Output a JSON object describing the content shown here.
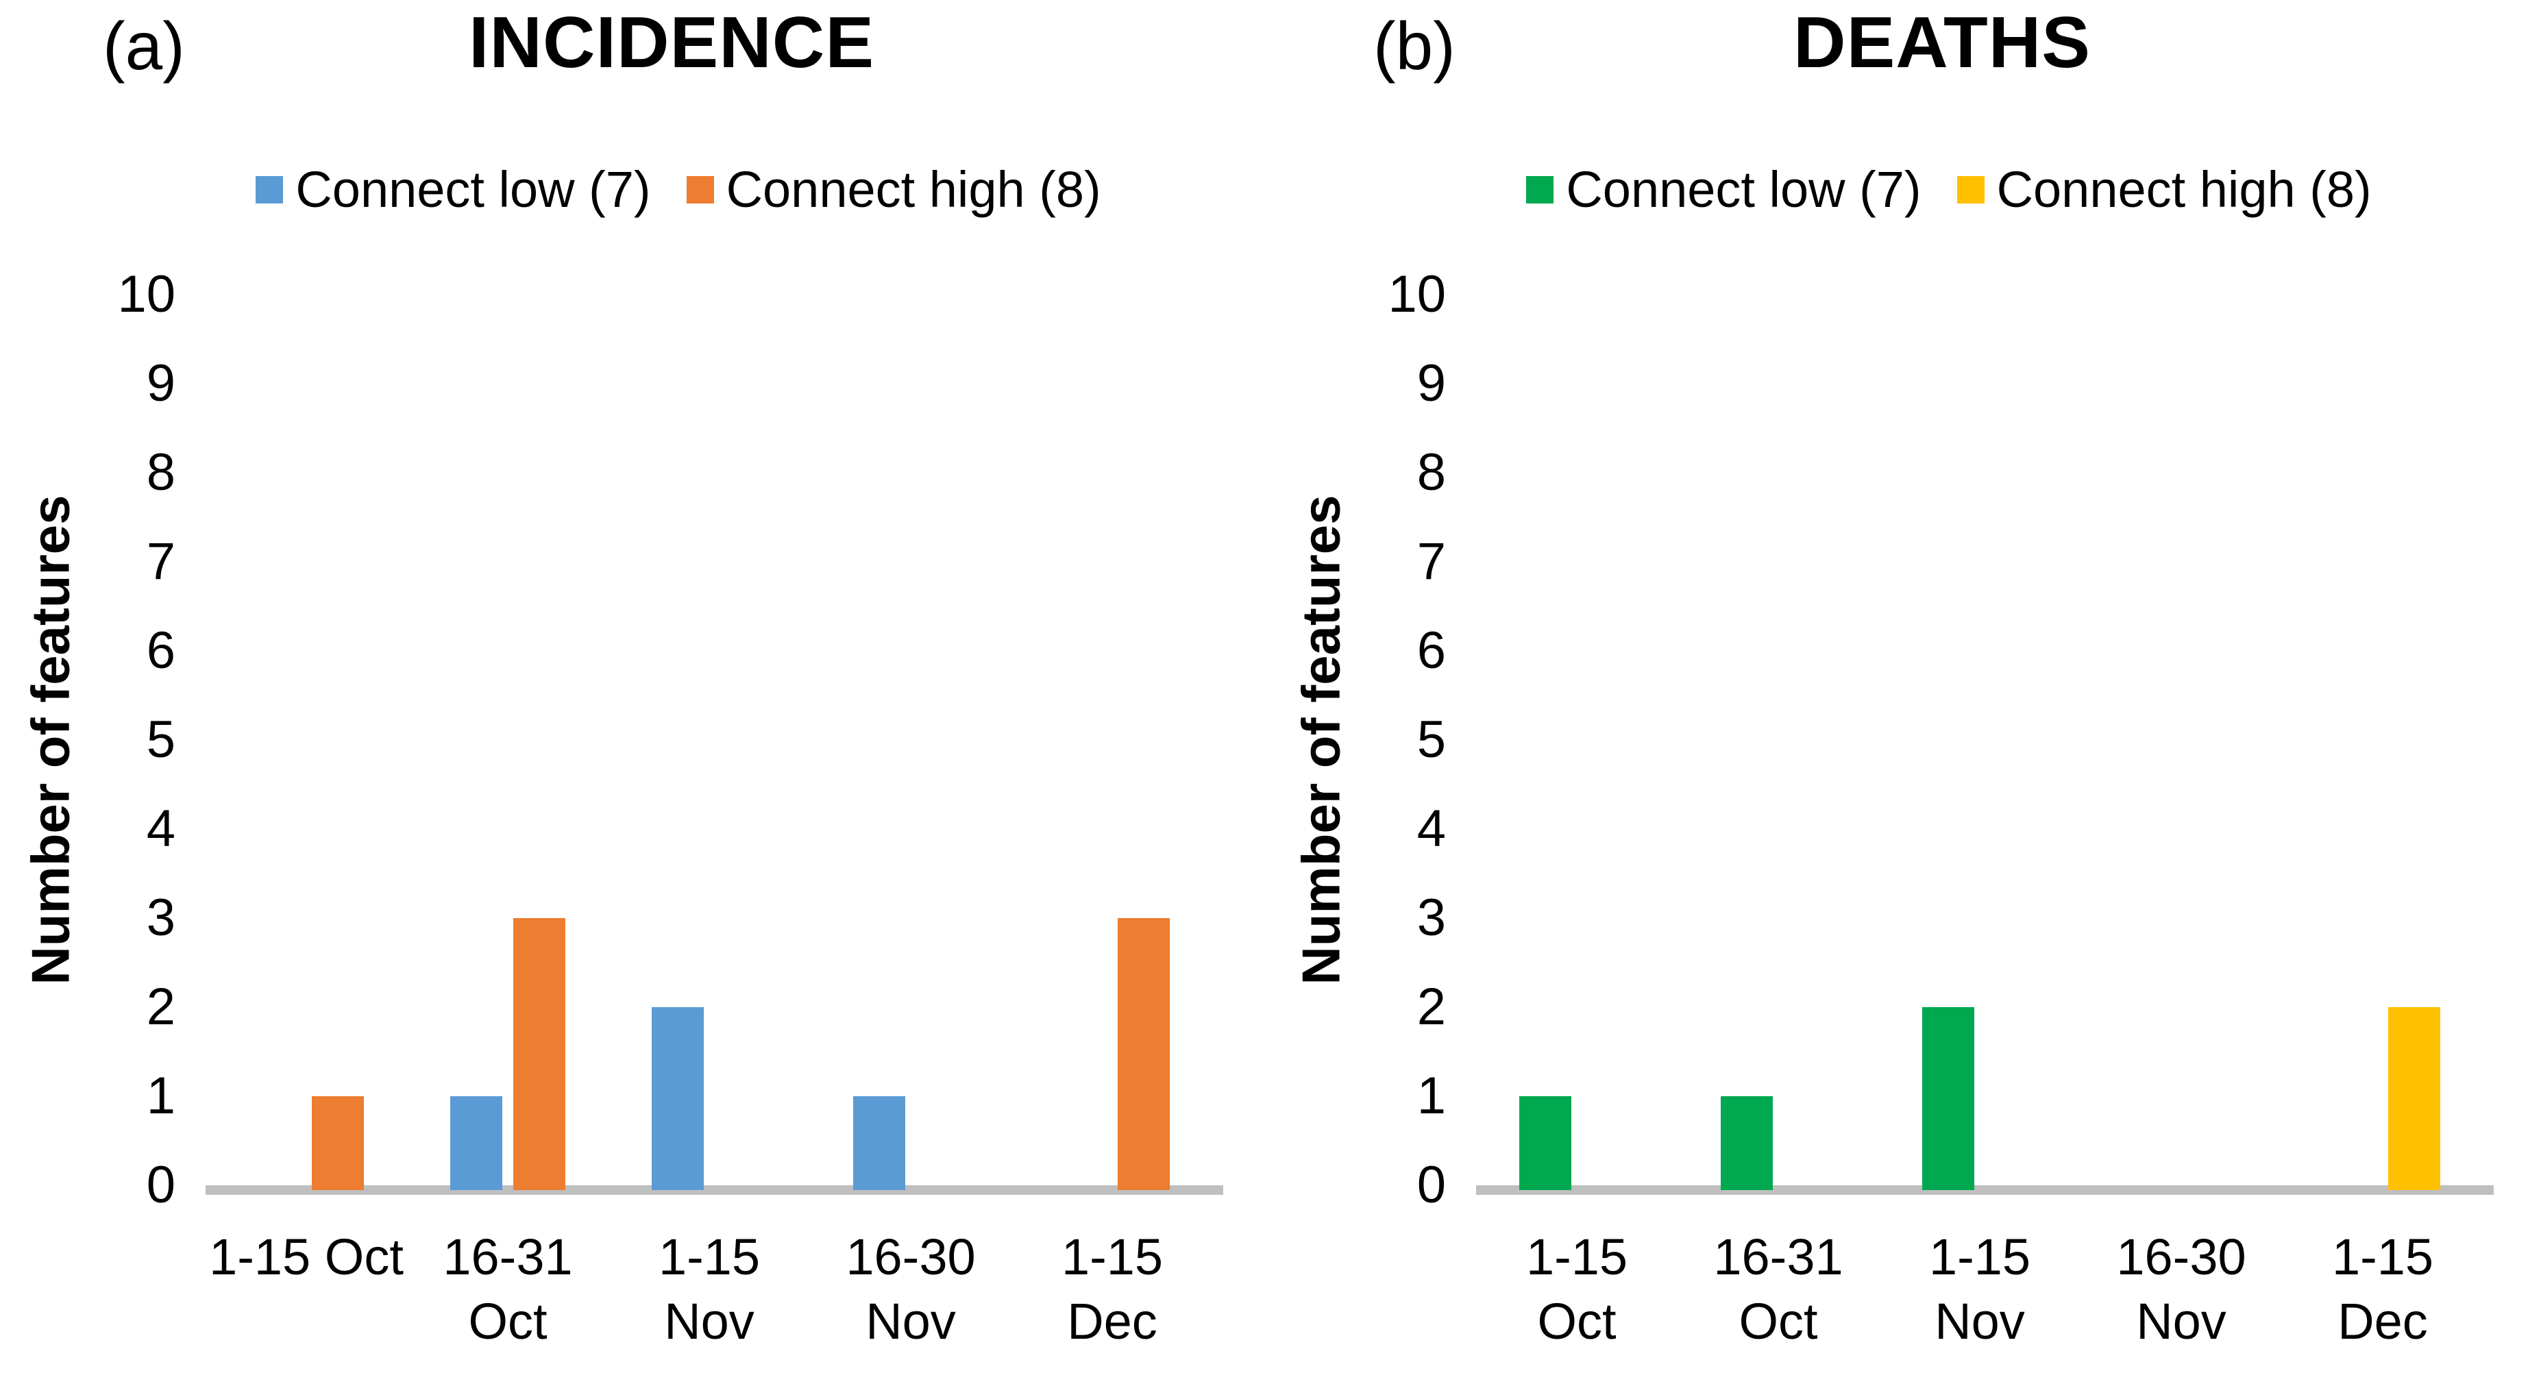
{
  "figure": {
    "background": "#FFFFFF",
    "axis_line_color": "#BFBFBF",
    "text_color": "#000000"
  },
  "chart_data": [
    {
      "type": "bar",
      "panel_label": "(a)",
      "title": "INCIDENCE",
      "ylabel": "Number of features",
      "ylim": [
        0,
        10
      ],
      "ytick_step": 1,
      "grid": false,
      "legend_position": "top",
      "categories": [
        "1-15 Oct",
        "16-31 Oct",
        "1-15 Nov",
        "16-30 Nov",
        "1-15 Dec"
      ],
      "xtick_wrap": [
        false,
        true,
        true,
        true,
        true
      ],
      "series": [
        {
          "name": "Connect low (7)",
          "color": "#5B9BD5",
          "values": [
            0,
            1,
            2,
            1,
            0
          ]
        },
        {
          "name": "Connect high (8)",
          "color": "#ED7D31",
          "values": [
            1,
            3,
            0,
            0,
            3
          ]
        }
      ]
    },
    {
      "type": "bar",
      "panel_label": "(b)",
      "title": "DEATHS",
      "ylabel": "Number of features",
      "ylim": [
        0,
        10
      ],
      "ytick_step": 1,
      "grid": false,
      "legend_position": "top",
      "categories": [
        "1-15 Oct",
        "16-31 Oct",
        "1-15 Nov",
        "16-30 Nov",
        "1-15 Dec"
      ],
      "xtick_wrap": [
        true,
        true,
        true,
        true,
        true
      ],
      "series": [
        {
          "name": "Connect low (7)",
          "color": "#00A84F",
          "values": [
            1,
            1,
            2,
            0,
            0
          ]
        },
        {
          "name": "Connect high (8)",
          "color": "#FFC000",
          "values": [
            0,
            0,
            0,
            0,
            2
          ]
        }
      ]
    }
  ]
}
